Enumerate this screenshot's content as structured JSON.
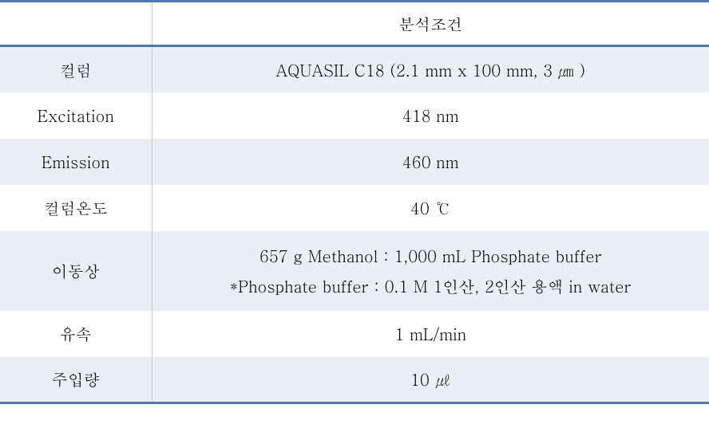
{
  "table": {
    "header": {
      "left": "",
      "right": "분석조건"
    },
    "rows": [
      {
        "label": "컬럼",
        "value": "AQUASIL C18 (2.1 mm  x  100 mm, 3 ㎛ )",
        "alt": true,
        "tall": false
      },
      {
        "label": "Excitation",
        "value": "418 nm",
        "alt": false,
        "tall": false
      },
      {
        "label": "Emission",
        "value": "460 nm",
        "alt": true,
        "tall": false
      },
      {
        "label": "컬럼온도",
        "value": "40 ℃",
        "alt": false,
        "tall": false
      },
      {
        "label": "이동상",
        "value": "657 g Methanol : 1,000 mL Phosphate buffer\n*Phosphate buffer : 0.1 M 1인산, 2인산 용액 in water",
        "alt": true,
        "tall": true
      },
      {
        "label": "유속",
        "value": "1 mL/min",
        "alt": false,
        "tall": false
      },
      {
        "label": "주입량",
        "value": "10 ㎕",
        "alt": true,
        "tall": false
      }
    ]
  },
  "style": {
    "border_color": "#4a7bb0",
    "alt_bg": "#eaeef5",
    "sep_color": "#c8c8c8",
    "font_size": 20,
    "text_color": "#000000"
  }
}
